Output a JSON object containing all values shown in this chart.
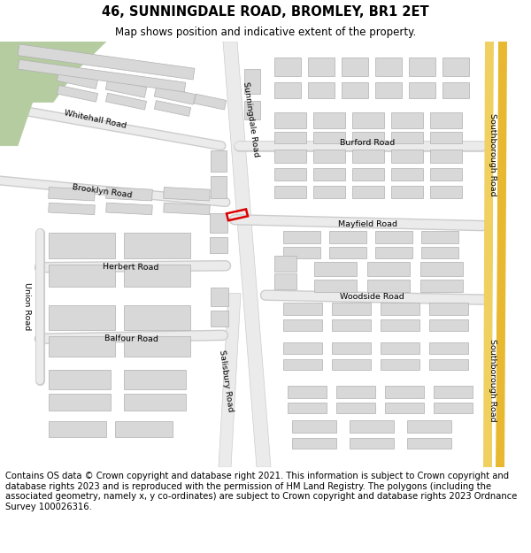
{
  "title": "46, SUNNINGDALE ROAD, BROMLEY, BR1 2ET",
  "subtitle": "Map shows position and indicative extent of the property.",
  "footer": "Contains OS data © Crown copyright and database right 2021. This information is subject to Crown copyright and database rights 2023 and is reproduced with the permission of HM Land Registry. The polygons (including the associated geometry, namely x, y co-ordinates) are subject to Crown copyright and database rights 2023 Ordnance Survey 100026316.",
  "bg_color": "#ffffff",
  "map_bg": "#ffffff",
  "building_color": "#d8d8d8",
  "building_edge": "#b0b0b0",
  "green_color": "#b5cca0",
  "yellow_road1": "#e8b830",
  "yellow_road2": "#f0d060",
  "red_plot": "#dd0000",
  "road_fill": "#ebebeb",
  "road_edge": "#cccccc",
  "title_fontsize": 10.5,
  "subtitle_fontsize": 8.5,
  "footer_fontsize": 7.2,
  "label_fontsize": 6.8
}
